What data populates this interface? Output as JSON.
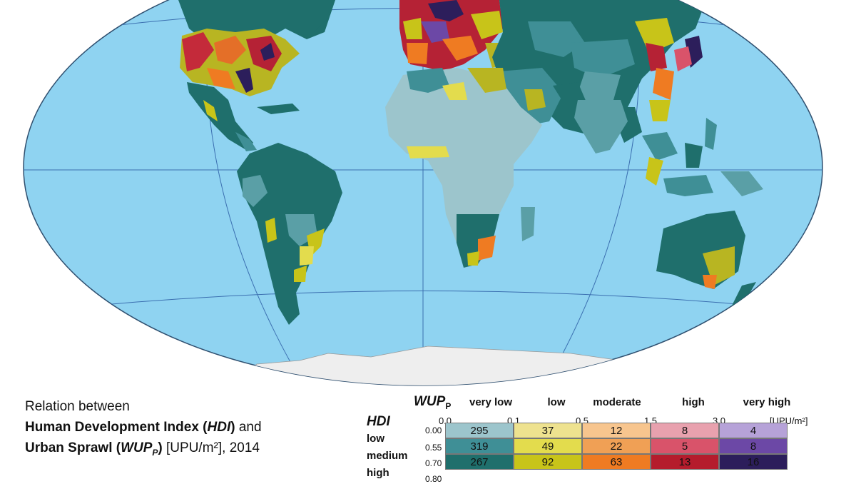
{
  "caption": {
    "line1": "Relation between",
    "line2_bold": "Human Development Index (",
    "line2_italic": "HDI",
    "line2_bold_end": ")",
    "line2_rest": " and",
    "line3_bold": "Urban Sprawl (",
    "line3_italic": "WUP",
    "line3_sub": "P",
    "line3_bold_end": ")",
    "line3_rest": " [UPU/m²], 2014"
  },
  "legend": {
    "wup_title": "WUP",
    "wup_sub": "P",
    "hdi_title": "HDI",
    "wup_categories": [
      "very low",
      "low",
      "moderate",
      "high",
      "very high"
    ],
    "wup_ticks": [
      "0.0",
      "0.1",
      "0.5",
      "1.5",
      "3.0"
    ],
    "unit": "[UPU/m²]",
    "hdi_categories": [
      "low",
      "medium",
      "high"
    ],
    "hdi_ticks": [
      "0.00",
      "0.55",
      "0.70",
      "0.80"
    ],
    "matrix": [
      [
        295,
        37,
        12,
        8,
        4
      ],
      [
        319,
        49,
        22,
        5,
        8
      ],
      [
        267,
        92,
        63,
        13,
        16
      ]
    ],
    "colors": [
      [
        "#9cc5cc",
        "#eee28f",
        "#f7c58e",
        "#e8a1ae",
        "#b6a2d8"
      ],
      [
        "#3f8f96",
        "#e3dc4d",
        "#f0a055",
        "#d9536a",
        "#6c48a6"
      ],
      [
        "#1f6f6c",
        "#c8c419",
        "#ef7b22",
        "#b51c2c",
        "#2c1e5b"
      ]
    ]
  },
  "map_colors": {
    "ocean": "#8fd3f1",
    "antarctica": "#eeeeee",
    "gridline": "#3b6fb0"
  }
}
